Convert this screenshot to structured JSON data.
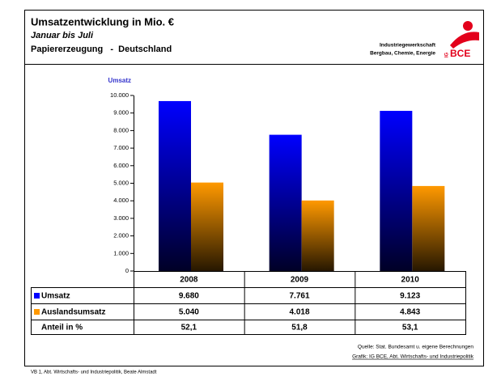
{
  "header": {
    "title": "Umsatzentwicklung in Mio. €",
    "subtitle": "Januar bis Juli",
    "subtitle2": "Papiererzeugung   -  Deutschland"
  },
  "logo": {
    "line1": "Industriegewerkschaft",
    "line2": "Bergbau, Chemie, Energie",
    "ig": "IG",
    "bce": "BCE"
  },
  "chart_data": {
    "type": "bar",
    "y_label": "Umsatz",
    "categories": [
      "2008",
      "2009",
      "2010"
    ],
    "series": [
      {
        "name": "Umsatz",
        "color": "#0000ff",
        "values": [
          9680,
          7761,
          9123
        ],
        "value_labels": [
          "9.680",
          "7.761",
          "9.123"
        ]
      },
      {
        "name": "Auslandsumsatz",
        "color": "#ff9900",
        "values": [
          5040,
          4018,
          4843
        ],
        "value_labels": [
          "5.040",
          "4.018",
          "4.843"
        ]
      }
    ],
    "share_row": {
      "label": "Anteil in %",
      "cells": [
        "52,1",
        "51,8",
        "53,1"
      ]
    },
    "ylim": [
      0,
      10000
    ],
    "yticks": [
      0,
      {
        "value": 1000,
        "label": "1.000"
      },
      {
        "value": 2000,
        "label": "2.000"
      },
      {
        "value": 3000,
        "label": "3.000"
      },
      {
        "value": 4000,
        "label": "4.000"
      },
      {
        "value": 5000,
        "label": "5.000"
      },
      {
        "value": 6000,
        "label": "6.000"
      },
      {
        "value": 7000,
        "label": "7.000"
      },
      {
        "value": 8000,
        "label": "8.000"
      },
      {
        "value": 9000,
        "label": "9.000"
      },
      {
        "value": 10000,
        "label": "10.000"
      }
    ]
  },
  "notes": {
    "source": "Quelle: Stat. Bundesamt u. eigene Berechnungen",
    "graphic": "Grafik: IG BCE, Abt. Wirtschafts- und Industriepolitik"
  },
  "footer": "VB 1, Abt. Wirtschafts- und Industriepolitik, Beate Almstadt"
}
